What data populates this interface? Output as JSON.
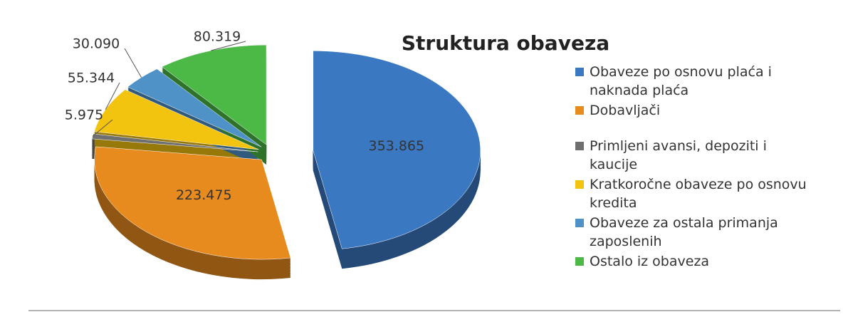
{
  "chart_data": {
    "type": "pie",
    "title": "Struktura obaveza",
    "categories": [
      "Obaveze po osnovu plaća i naknada plaća",
      "Dobavljači",
      "Primljeni avansi, depoziti i kaucije",
      "Kratkoročne obaveze po osnovu kredita",
      "Obaveze za ostala primanja zaposlenih",
      "Ostalo iz obaveza"
    ],
    "values": [
      353865,
      223475,
      5975,
      55344,
      30090,
      80319
    ],
    "value_labels": [
      "353.865",
      "223.475",
      "5.975",
      "55.344",
      "30.090",
      "80.319"
    ],
    "colors": [
      "#3b78c2",
      "#e88b1e",
      "#6f6f6f",
      "#f2c30f",
      "#4f92c8",
      "#4cb846"
    ],
    "legend": "right"
  }
}
